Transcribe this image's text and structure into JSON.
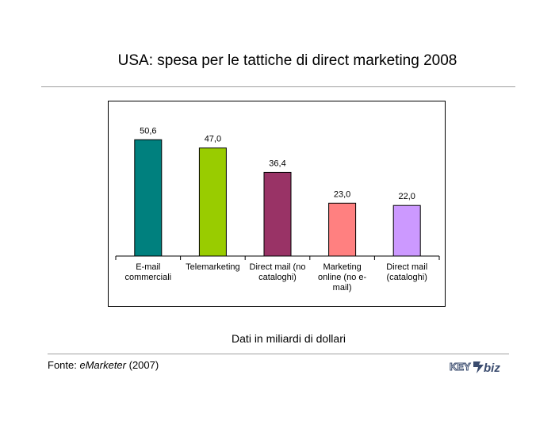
{
  "page": {
    "title": "USA: spesa per le tattiche di direct marketing 2008",
    "note": "Dati in miliardi di dollari",
    "source_prefix": "Fonte: ",
    "source_name": "eMarketer",
    "source_suffix": " (2007)",
    "logo_text_left": "KEY",
    "logo_text_right": "biz"
  },
  "chart_data": {
    "type": "bar",
    "title": "",
    "xlabel": "",
    "ylabel": "",
    "ylim": [
      0,
      60
    ],
    "grid": false,
    "legend": "none",
    "categories": [
      [
        "E-mail",
        "commerciali"
      ],
      [
        "Telemarketing"
      ],
      [
        "Direct mail (no",
        "cataloghi)"
      ],
      [
        "Marketing",
        "online (no e-",
        "mail)"
      ],
      [
        "Direct mail",
        "(cataloghi)"
      ]
    ],
    "values": [
      50.6,
      47.0,
      36.4,
      23.0,
      22.0
    ],
    "value_labels": [
      "50,6",
      "47,0",
      "36,4",
      "23,0",
      "22,0"
    ],
    "colors": [
      "#00807e",
      "#99cc00",
      "#993366",
      "#ff8080",
      "#cc99ff"
    ]
  }
}
